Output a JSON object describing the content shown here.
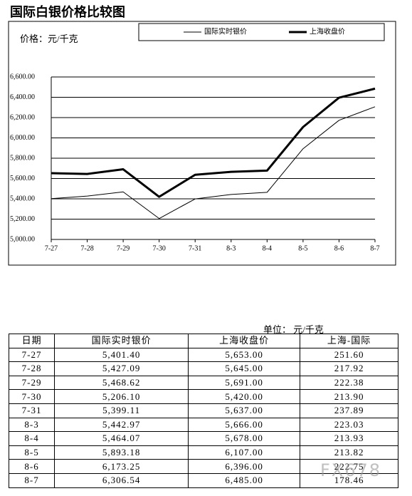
{
  "chart_data": {
    "type": "line",
    "title": "国际白银价格比较图",
    "y_label": "价格：元/千克",
    "categories": [
      "7-27",
      "7-28",
      "7-29",
      "7-30",
      "7-31",
      "8-3",
      "8-4",
      "8-5",
      "8-6",
      "8-7"
    ],
    "series": [
      {
        "name": "国际实时银价",
        "color": "#000000",
        "width": 1,
        "values": [
          5401.4,
          5427.09,
          5468.62,
          5206.1,
          5399.11,
          5442.97,
          5464.07,
          5893.18,
          6173.25,
          6306.54
        ]
      },
      {
        "name": "上海收盘价",
        "color": "#000000",
        "width": 3,
        "values": [
          5653.0,
          5645.0,
          5691.0,
          5420.0,
          5637.0,
          5666.0,
          5678.0,
          6107.0,
          6396.0,
          6485.0
        ]
      }
    ],
    "ylim": [
      5000,
      6600
    ],
    "yticks": [
      {
        "value": 5000,
        "label": "5,000.00"
      },
      {
        "value": 5200,
        "label": "5,200.00"
      },
      {
        "value": 5400,
        "label": "5,400.00"
      },
      {
        "value": 5600,
        "label": "5,600.00"
      },
      {
        "value": 5800,
        "label": "5,800.00"
      },
      {
        "value": 6000,
        "label": "6,000.00"
      },
      {
        "value": 6200,
        "label": "6,200.00"
      },
      {
        "value": 6400,
        "label": "6,400.00"
      },
      {
        "value": 6600,
        "label": "6,600.00"
      }
    ],
    "grid": true
  },
  "table": {
    "unit": "单位： 元/千克",
    "header": [
      "日期",
      "国际实时银价",
      "上海收盘价",
      "上海-国际"
    ],
    "rows": [
      [
        "7-27",
        "5,401.40",
        "5,653.00",
        "251.60"
      ],
      [
        "7-28",
        "5,427.09",
        "5,645.00",
        "217.92"
      ],
      [
        "7-29",
        "5,468.62",
        "5,691.00",
        "222.38"
      ],
      [
        "7-30",
        "5,206.10",
        "5,420.00",
        "213.90"
      ],
      [
        "7-31",
        "5,399.11",
        "5,637.00",
        "237.89"
      ],
      [
        "8-3",
        "5,442.97",
        "5,666.00",
        "223.03"
      ],
      [
        "8-4",
        "5,464.07",
        "5,678.00",
        "213.93"
      ],
      [
        "8-5",
        "5,893.18",
        "6,107.00",
        "213.82"
      ],
      [
        "8-6",
        "6,173.25",
        "6,396.00",
        "222.75"
      ],
      [
        "8-7",
        "6,306.54",
        "6,485.00",
        "178.46"
      ]
    ]
  },
  "watermark": "FX678"
}
